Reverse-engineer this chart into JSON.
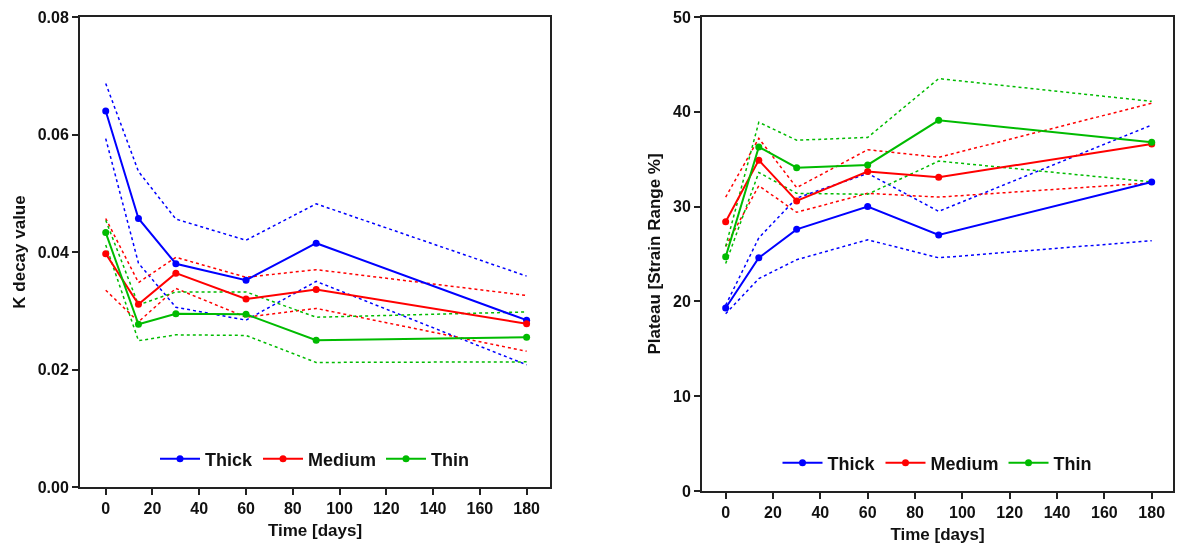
{
  "chart_data": [
    {
      "type": "line",
      "xlabel": "Time [days]",
      "ylabel": "K decay value",
      "x": [
        0,
        14,
        30,
        60,
        90,
        180
      ],
      "xlim": [
        -11,
        190
      ],
      "xticks": [
        0,
        20,
        40,
        60,
        80,
        100,
        120,
        140,
        160,
        180
      ],
      "ylim": [
        0,
        0.08
      ],
      "yticks": [
        {
          "value": 0,
          "label": "0.00"
        },
        {
          "value": 0.02,
          "label": "0.02"
        },
        {
          "value": 0.04,
          "label": "0.04"
        },
        {
          "value": 0.06,
          "label": "0.06"
        },
        {
          "value": 0.08,
          "label": "0.08"
        }
      ],
      "legend": "bottom",
      "marker": "circle",
      "line_style": "solid",
      "series": [
        {
          "color": "#0000ff",
          "line_style": "dotted",
          "marker": "none",
          "values": [
            0.0593,
            0.0381,
            0.0306,
            0.0284,
            0.035,
            0.0208
          ]
        },
        {
          "color": "#0000ff",
          "line_style": "dotted",
          "marker": "none",
          "values": [
            0.0687,
            0.0537,
            0.0456,
            0.042,
            0.0482,
            0.0359
          ]
        },
        {
          "color": "#ff0000",
          "line_style": "dotted",
          "marker": "none",
          "values": [
            0.0335,
            0.0281,
            0.0338,
            0.0289,
            0.0304,
            0.0231
          ]
        },
        {
          "color": "#ff0000",
          "line_style": "dotted",
          "marker": "none",
          "values": [
            0.0457,
            0.0348,
            0.0391,
            0.0357,
            0.037,
            0.0326
          ]
        },
        {
          "color": "#00bb00",
          "line_style": "dotted",
          "marker": "none",
          "values": [
            0.0412,
            0.0249,
            0.0259,
            0.0258,
            0.0212,
            0.0213
          ]
        },
        {
          "color": "#00bb00",
          "line_style": "dotted",
          "marker": "none",
          "values": [
            0.0454,
            0.031,
            0.0332,
            0.0332,
            0.0289,
            0.0298
          ]
        },
        {
          "name": "Thick",
          "color": "#0000ff",
          "values": [
            0.064,
            0.0457,
            0.038,
            0.0352,
            0.0415,
            0.0284
          ]
        },
        {
          "name": "Medium",
          "color": "#ff0000",
          "values": [
            0.0397,
            0.0311,
            0.0364,
            0.032,
            0.0336,
            0.0278
          ]
        },
        {
          "name": "Thin",
          "color": "#00bb00",
          "values": [
            0.0433,
            0.0277,
            0.0295,
            0.0294,
            0.025,
            0.0255
          ]
        }
      ]
    },
    {
      "type": "line",
      "xlabel": "Time [days]",
      "ylabel": "Plateau [Strain Range %]",
      "x": [
        0,
        14,
        30,
        60,
        90,
        180
      ],
      "xlim": [
        -10,
        189
      ],
      "xticks": [
        0,
        20,
        40,
        60,
        80,
        100,
        120,
        140,
        160,
        180
      ],
      "ylim": [
        0,
        50
      ],
      "yticks": [
        0,
        10,
        20,
        30,
        40,
        50
      ],
      "legend": "bottom",
      "marker": "circle",
      "line_style": "solid",
      "series": [
        {
          "color": "#0000ff",
          "line_style": "dotted",
          "marker": "none",
          "values": [
            18.7,
            22.4,
            24.4,
            26.5,
            24.6,
            26.4
          ]
        },
        {
          "color": "#0000ff",
          "line_style": "dotted",
          "marker": "none",
          "values": [
            19.6,
            26.7,
            30.9,
            33.5,
            29.5,
            38.6
          ]
        },
        {
          "color": "#ff0000",
          "line_style": "dotted",
          "marker": "none",
          "values": [
            25.8,
            32.2,
            29.4,
            31.4,
            31.0,
            32.5
          ]
        },
        {
          "color": "#ff0000",
          "line_style": "dotted",
          "marker": "none",
          "values": [
            31.0,
            37.2,
            32.0,
            36.0,
            35.2,
            40.9
          ]
        },
        {
          "color": "#00bb00",
          "line_style": "dotted",
          "marker": "none",
          "values": [
            24.0,
            33.6,
            31.4,
            31.3,
            34.8,
            32.6
          ]
        },
        {
          "color": "#00bb00",
          "line_style": "dotted",
          "marker": "none",
          "values": [
            25.8,
            38.9,
            37.0,
            37.3,
            43.5,
            41.1
          ]
        },
        {
          "name": "Thick",
          "color": "#0000ff",
          "values": [
            19.3,
            24.6,
            27.6,
            30.0,
            27.0,
            32.6
          ]
        },
        {
          "name": "Medium",
          "color": "#ff0000",
          "values": [
            28.4,
            34.9,
            30.6,
            33.7,
            33.1,
            36.6
          ]
        },
        {
          "name": "Thin",
          "color": "#00bb00",
          "values": [
            24.7,
            36.3,
            34.1,
            34.4,
            39.1,
            36.8
          ]
        }
      ]
    }
  ]
}
